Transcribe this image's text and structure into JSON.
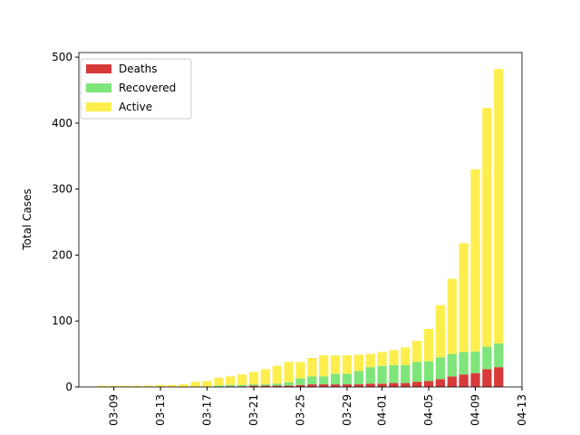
{
  "chart_data": {
    "type": "bar",
    "stacked": true,
    "y_label": "Total Cases",
    "x": [
      "03-08",
      "03-09",
      "03-10",
      "03-11",
      "03-12",
      "03-13",
      "03-14",
      "03-15",
      "03-16",
      "03-17",
      "03-18",
      "03-19",
      "03-20",
      "03-21",
      "03-22",
      "03-23",
      "03-24",
      "03-25",
      "03-26",
      "03-27",
      "03-28",
      "03-29",
      "03-30",
      "03-31",
      "04-01",
      "04-02",
      "04-03",
      "04-04",
      "04-05",
      "04-06",
      "04-07",
      "04-08",
      "04-09",
      "04-10",
      "04-11"
    ],
    "series": [
      {
        "name": "Deaths",
        "color": "#d83a3a",
        "values": [
          0,
          0,
          0,
          0,
          0,
          0,
          0,
          0,
          0,
          0,
          0,
          1,
          1,
          2,
          2,
          2,
          2,
          3,
          4,
          4,
          4,
          4,
          4,
          5,
          5,
          6,
          6,
          8,
          9,
          12,
          16,
          19,
          21,
          27,
          30
        ]
      },
      {
        "name": "Recovered",
        "color": "#7ee57a",
        "values": [
          0,
          0,
          0,
          0,
          0,
          0,
          0,
          0,
          0,
          0,
          2,
          2,
          2,
          2,
          2,
          3,
          5,
          10,
          12,
          12,
          16,
          16,
          20,
          25,
          27,
          27,
          27,
          30,
          30,
          33,
          34,
          34,
          33,
          34,
          36
        ]
      },
      {
        "name": "Active",
        "color": "#fdee4e",
        "values": [
          2,
          2,
          2,
          2,
          2,
          3,
          3,
          4,
          8,
          9,
          12,
          13,
          16,
          19,
          23,
          27,
          31,
          25,
          28,
          32,
          28,
          28,
          25,
          20,
          21,
          23,
          27,
          32,
          49,
          79,
          114,
          165,
          276,
          362,
          416
        ]
      }
    ],
    "xlim": [
      "03-06",
      "04-13"
    ],
    "xticks": [
      "03-09",
      "03-13",
      "03-17",
      "03-21",
      "03-25",
      "03-29",
      "04-01",
      "04-05",
      "04-09",
      "04-13"
    ],
    "ylim": [
      0,
      507
    ],
    "yticks": [
      0,
      100,
      200,
      300,
      400,
      500
    ],
    "legend": "upper left"
  }
}
